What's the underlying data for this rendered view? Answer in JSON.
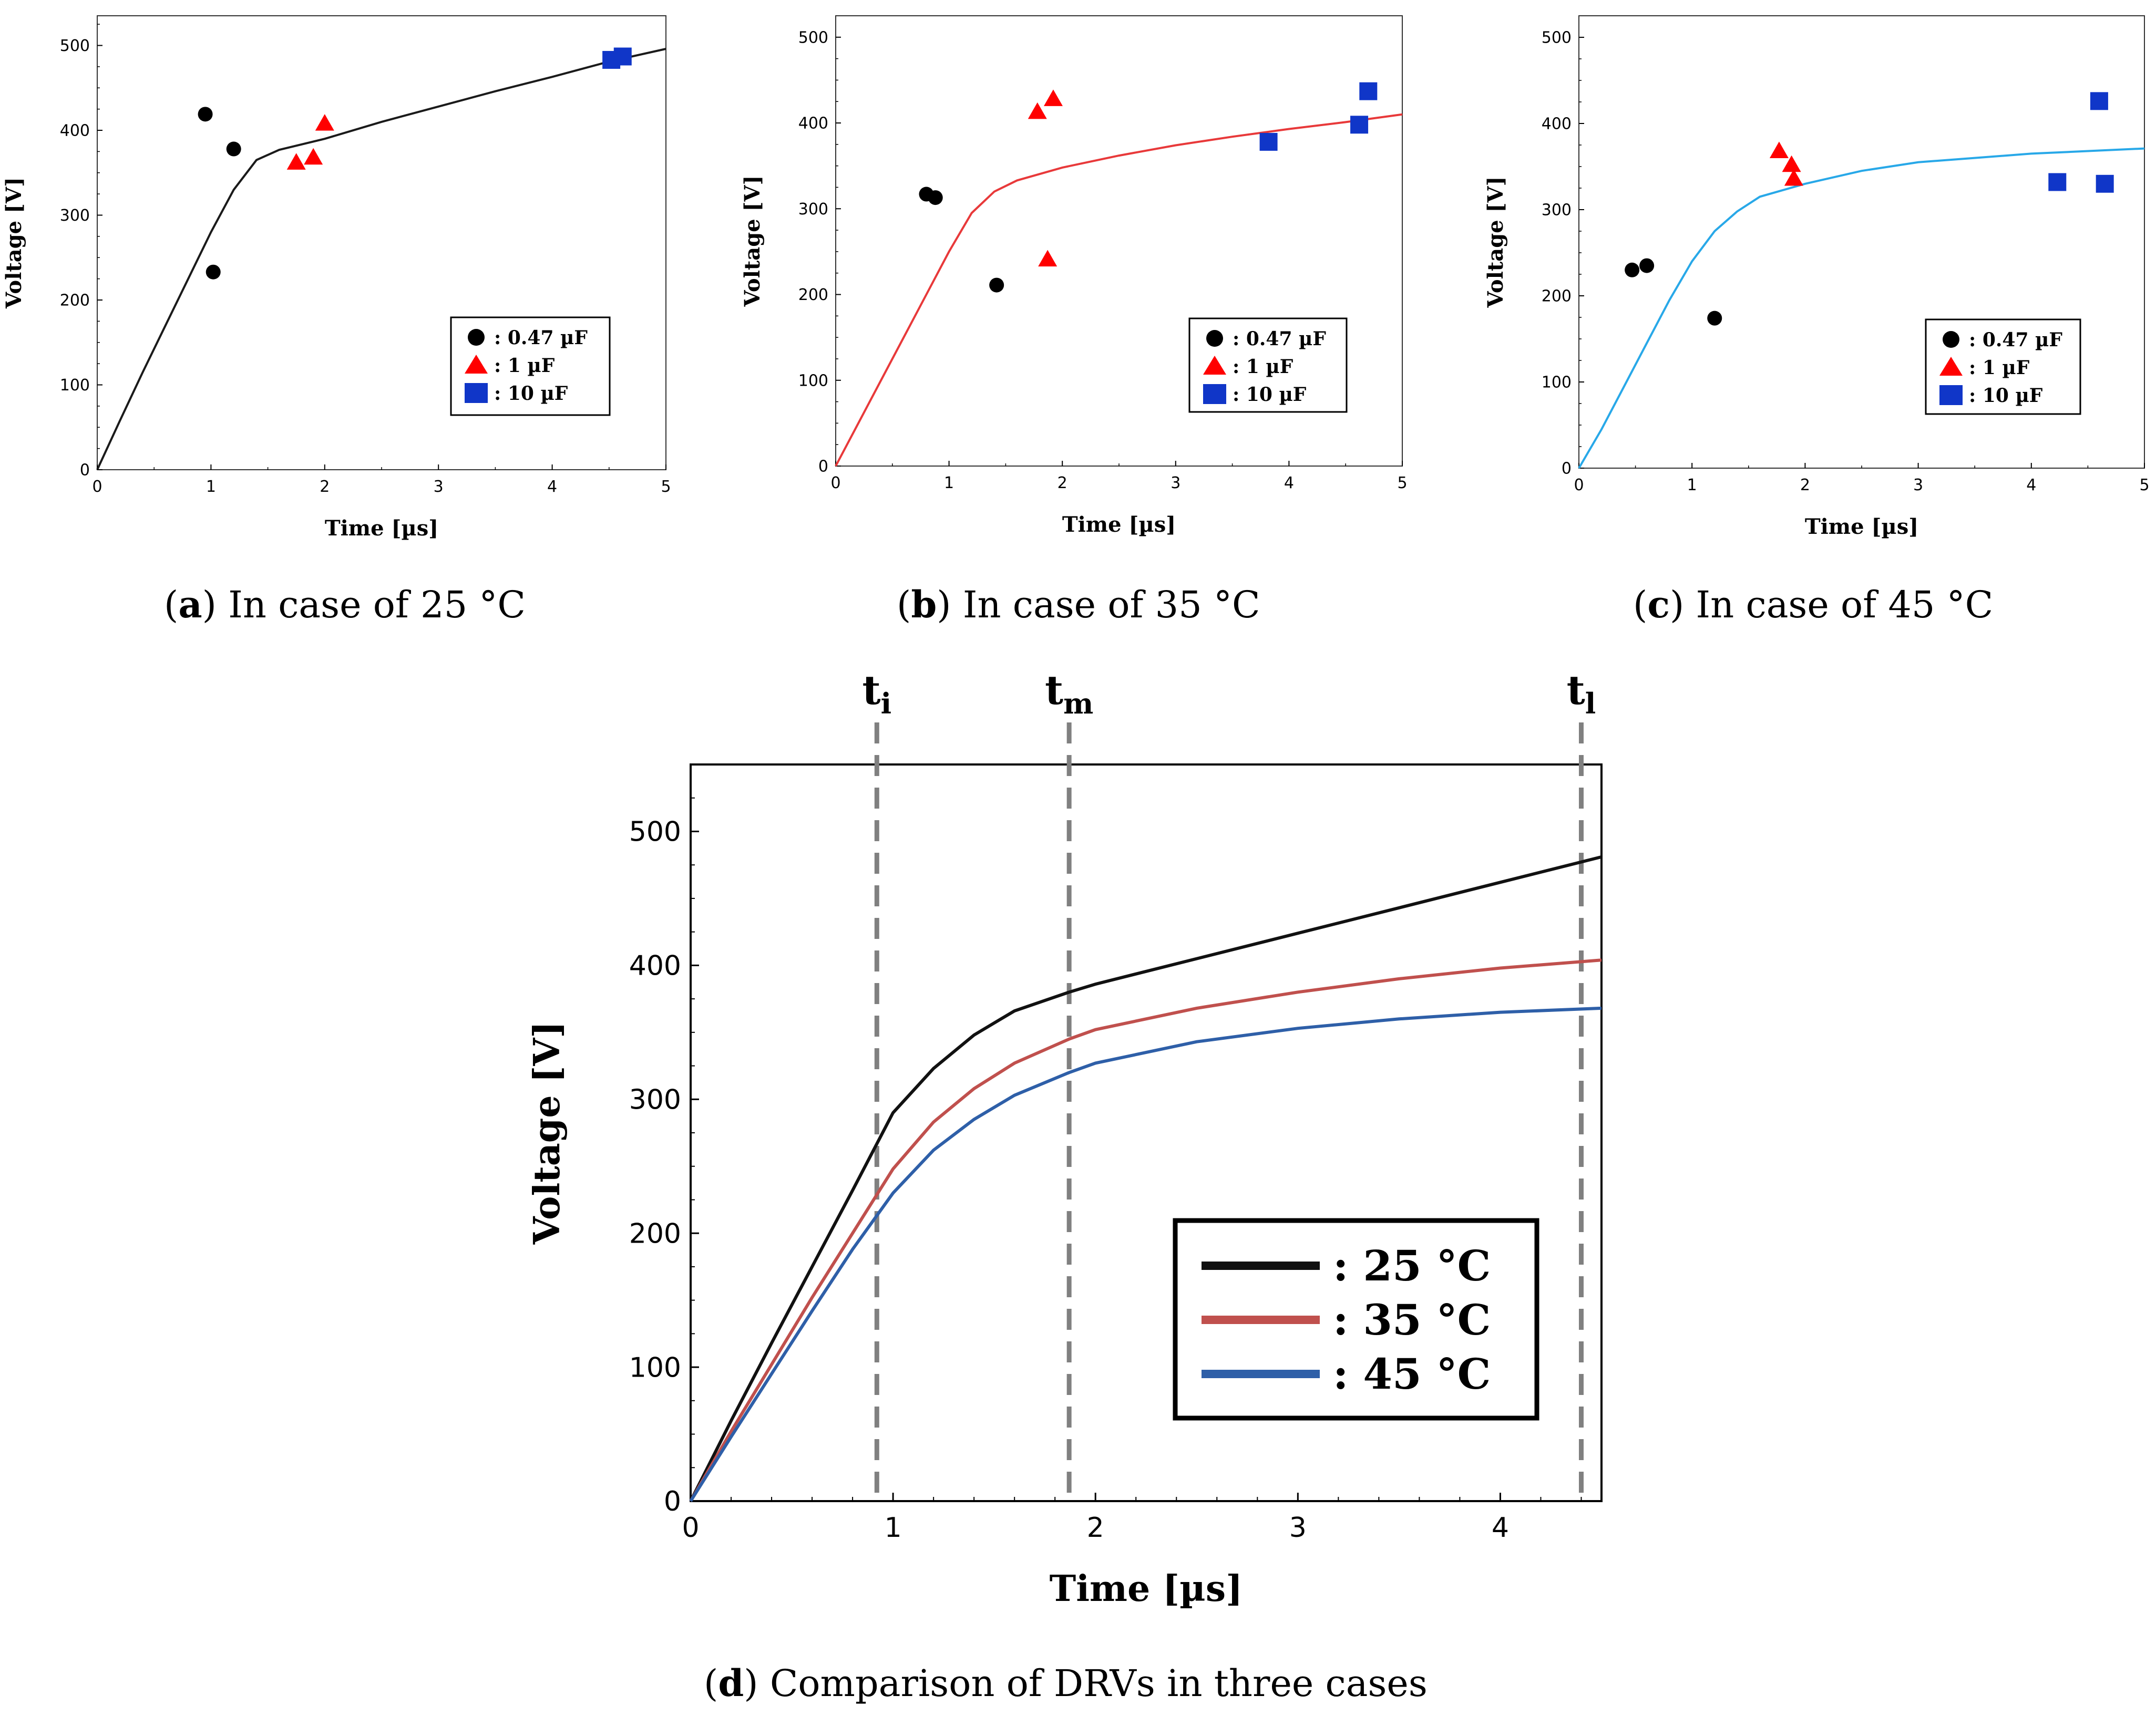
{
  "colors": {
    "c25": "#1a1a1a",
    "c35": "#e8393a",
    "c45": "#28a8e8",
    "d25": "#111111",
    "d35": "#c0504d",
    "d45": "#2e5fa8",
    "marker_black": "#000000",
    "marker_red": "#ff0000",
    "marker_blue": "#1036c8",
    "dashed": "#808080"
  },
  "chart_data": [
    {
      "id": "a",
      "type": "scatter",
      "caption_letter": "a",
      "caption_text": ") In case of 25 °C",
      "xlabel": "Time [µs]",
      "ylabel": "Voltage [V]",
      "xlim": [
        0,
        5
      ],
      "ylim": [
        0,
        535
      ],
      "xticks": [
        "0",
        "1",
        "2",
        "3",
        "4",
        "5"
      ],
      "yticks": [
        "0",
        "100",
        "200",
        "300",
        "400",
        "500"
      ],
      "legend": [
        ":  0.47 µF",
        ":  1 µF",
        ":  10 µF"
      ],
      "curve": {
        "name": "fit",
        "color_key": "c25",
        "points": [
          [
            0,
            0
          ],
          [
            0.2,
            58
          ],
          [
            0.4,
            115
          ],
          [
            0.6,
            170
          ],
          [
            0.8,
            225
          ],
          [
            1.0,
            280
          ],
          [
            1.2,
            330
          ],
          [
            1.4,
            365
          ],
          [
            1.6,
            377
          ],
          [
            2.0,
            390
          ],
          [
            2.5,
            410
          ],
          [
            3.0,
            428
          ],
          [
            3.5,
            446
          ],
          [
            4.0,
            463
          ],
          [
            4.5,
            481
          ],
          [
            5.0,
            496
          ]
        ]
      },
      "series": [
        {
          "name": "0.47 µF",
          "marker": "circle",
          "color_key": "marker_black",
          "points": [
            [
              0.95,
              419
            ],
            [
              1.2,
              378
            ],
            [
              1.02,
              233
            ]
          ]
        },
        {
          "name": "1 µF",
          "marker": "triangle",
          "color_key": "marker_red",
          "points": [
            [
              1.75,
              362
            ],
            [
              1.9,
              368
            ],
            [
              2.0,
              408
            ]
          ]
        },
        {
          "name": "10 µF",
          "marker": "square",
          "color_key": "marker_blue",
          "points": [
            [
              4.52,
              483
            ],
            [
              4.62,
              487
            ]
          ]
        }
      ]
    },
    {
      "id": "b",
      "type": "scatter",
      "caption_letter": "b",
      "caption_text": ") In case of 35 °C",
      "xlabel": "Time [µs]",
      "ylabel": "Voltage [V]",
      "xlim": [
        0,
        5
      ],
      "ylim": [
        0,
        525
      ],
      "xticks": [
        "0",
        "1",
        "2",
        "3",
        "4",
        "5"
      ],
      "yticks": [
        "0",
        "100",
        "200",
        "300",
        "400",
        "500"
      ],
      "legend": [
        ":  0.47 µF",
        ":  1 µF",
        ":  10 µF"
      ],
      "curve": {
        "name": "fit",
        "color_key": "c35",
        "points": [
          [
            0,
            0
          ],
          [
            0.2,
            50
          ],
          [
            0.4,
            100
          ],
          [
            0.6,
            150
          ],
          [
            0.8,
            200
          ],
          [
            1.0,
            250
          ],
          [
            1.2,
            295
          ],
          [
            1.4,
            320
          ],
          [
            1.6,
            333
          ],
          [
            2.0,
            348
          ],
          [
            2.5,
            362
          ],
          [
            3.0,
            374
          ],
          [
            3.5,
            384
          ],
          [
            4.0,
            393
          ],
          [
            4.5,
            401
          ],
          [
            5.0,
            410
          ]
        ]
      },
      "series": [
        {
          "name": "0.47 µF",
          "marker": "circle",
          "color_key": "marker_black",
          "points": [
            [
              0.8,
              317
            ],
            [
              0.88,
              313
            ],
            [
              1.42,
              211
            ]
          ]
        },
        {
          "name": "1 µF",
          "marker": "triangle",
          "color_key": "marker_red",
          "points": [
            [
              1.78,
              413
            ],
            [
              1.92,
              428
            ],
            [
              1.87,
              241
            ]
          ]
        },
        {
          "name": "10 µF",
          "marker": "square",
          "color_key": "marker_blue",
          "points": [
            [
              3.82,
              378
            ],
            [
              4.62,
              398
            ],
            [
              4.7,
              437
            ]
          ]
        }
      ]
    },
    {
      "id": "c",
      "type": "scatter",
      "caption_letter": "c",
      "caption_text": ") In case of 45 °C",
      "xlabel": "Time [µs]",
      "ylabel": "Voltage [V]",
      "xlim": [
        0,
        5
      ],
      "ylim": [
        0,
        525
      ],
      "xticks": [
        "0",
        "1",
        "2",
        "3",
        "4",
        "5"
      ],
      "yticks": [
        "0",
        "100",
        "200",
        "300",
        "400",
        "500"
      ],
      "legend": [
        ":  0.47 µF",
        ":  1 µF",
        ":  10 µF"
      ],
      "curve": {
        "name": "fit",
        "color_key": "c45",
        "points": [
          [
            0,
            0
          ],
          [
            0.2,
            45
          ],
          [
            0.4,
            95
          ],
          [
            0.6,
            145
          ],
          [
            0.8,
            195
          ],
          [
            1.0,
            240
          ],
          [
            1.2,
            275
          ],
          [
            1.4,
            298
          ],
          [
            1.6,
            315
          ],
          [
            2.0,
            330
          ],
          [
            2.5,
            345
          ],
          [
            3.0,
            355
          ],
          [
            3.5,
            360
          ],
          [
            4.0,
            365
          ],
          [
            4.5,
            368
          ],
          [
            5.0,
            371
          ]
        ]
      },
      "series": [
        {
          "name": "0.47 µF",
          "marker": "circle",
          "color_key": "marker_black",
          "points": [
            [
              0.47,
              230
            ],
            [
              0.6,
              235
            ],
            [
              1.2,
              174
            ]
          ]
        },
        {
          "name": "1 µF",
          "marker": "triangle",
          "color_key": "marker_red",
          "points": [
            [
              1.77,
              368
            ],
            [
              1.88,
              352
            ],
            [
              1.9,
              336
            ]
          ]
        },
        {
          "name": "10 µF",
          "marker": "square",
          "color_key": "marker_blue",
          "points": [
            [
              4.23,
              332
            ],
            [
              4.6,
              426
            ],
            [
              4.65,
              330
            ]
          ]
        }
      ]
    },
    {
      "id": "d",
      "type": "line",
      "caption_letter": "d",
      "caption_text": ") Comparison of DRVs in three cases",
      "xlabel": "Time [µs]",
      "ylabel": "Voltage [V]",
      "xlim": [
        0,
        4.5
      ],
      "ylim": [
        0,
        550
      ],
      "xticks": [
        "0",
        "1",
        "2",
        "3",
        "4"
      ],
      "yticks": [
        "0",
        "100",
        "200",
        "300",
        "400",
        "500"
      ],
      "markers": [
        {
          "base": "t",
          "sub": "i",
          "x": 0.92
        },
        {
          "base": "t",
          "sub": "m",
          "x": 1.87
        },
        {
          "base": "t",
          "sub": "l",
          "x": 4.4
        }
      ],
      "legend": [
        ":  25 °C",
        ":  35 °C",
        ":  45 °C"
      ],
      "series": [
        {
          "name": "25 °C",
          "color_key": "d25",
          "points": [
            [
              0,
              0
            ],
            [
              0.2,
              60
            ],
            [
              0.4,
              118
            ],
            [
              0.6,
              175
            ],
            [
              0.8,
              232
            ],
            [
              1.0,
              290
            ],
            [
              1.2,
              323
            ],
            [
              1.4,
              348
            ],
            [
              1.6,
              366
            ],
            [
              1.87,
              380
            ],
            [
              2.0,
              386
            ],
            [
              2.5,
              405
            ],
            [
              3.0,
              424
            ],
            [
              3.5,
              443
            ],
            [
              4.0,
              462
            ],
            [
              4.5,
              481
            ]
          ]
        },
        {
          "name": "35 °C",
          "color_key": "d35",
          "points": [
            [
              0,
              0
            ],
            [
              0.2,
              52
            ],
            [
              0.4,
              102
            ],
            [
              0.6,
              152
            ],
            [
              0.8,
              200
            ],
            [
              1.0,
              248
            ],
            [
              1.2,
              283
            ],
            [
              1.4,
              308
            ],
            [
              1.6,
              327
            ],
            [
              1.87,
              345
            ],
            [
              2.0,
              352
            ],
            [
              2.5,
              368
            ],
            [
              3.0,
              380
            ],
            [
              3.5,
              390
            ],
            [
              4.0,
              398
            ],
            [
              4.5,
              404
            ]
          ]
        },
        {
          "name": "45 °C",
          "color_key": "d45",
          "points": [
            [
              0,
              0
            ],
            [
              0.2,
              48
            ],
            [
              0.4,
              95
            ],
            [
              0.6,
              142
            ],
            [
              0.8,
              188
            ],
            [
              1.0,
              230
            ],
            [
              1.2,
              262
            ],
            [
              1.4,
              285
            ],
            [
              1.6,
              303
            ],
            [
              1.87,
              320
            ],
            [
              2.0,
              327
            ],
            [
              2.5,
              343
            ],
            [
              3.0,
              353
            ],
            [
              3.5,
              360
            ],
            [
              4.0,
              365
            ],
            [
              4.5,
              368
            ]
          ]
        }
      ]
    }
  ]
}
